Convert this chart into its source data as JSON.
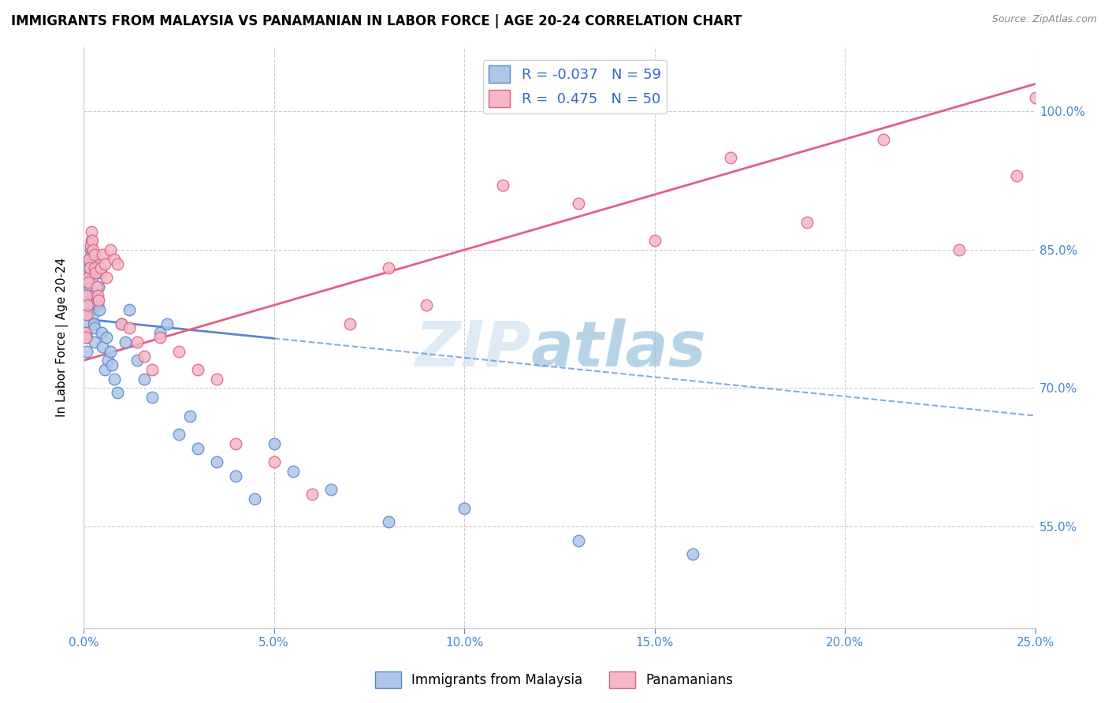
{
  "title": "IMMIGRANTS FROM MALAYSIA VS PANAMANIAN IN LABOR FORCE | AGE 20-24 CORRELATION CHART",
  "source": "Source: ZipAtlas.com",
  "xlabel_ticks": [
    "0.0%",
    "5.0%",
    "10.0%",
    "15.0%",
    "20.0%",
    "25.0%"
  ],
  "xlabel_vals": [
    0.0,
    5.0,
    10.0,
    15.0,
    20.0,
    25.0
  ],
  "ylabel_ticks_right": [
    "100.0%",
    "85.0%",
    "70.0%",
    "55.0%"
  ],
  "ylabel_vals": [
    55.0,
    70.0,
    85.0,
    100.0
  ],
  "ylabel_label": "In Labor Force | Age 20-24",
  "xlim": [
    0.0,
    25.0
  ],
  "ylim": [
    44.0,
    107.0
  ],
  "malaysia_color": "#aec6e8",
  "panama_color": "#f5b8c8",
  "malaysia_edge": "#5588cc",
  "panama_edge": "#e06080",
  "malaysia_R": -0.037,
  "malaysia_N": 59,
  "panama_R": 0.475,
  "panama_N": 50,
  "legend_label1": "Immigrants from Malaysia",
  "legend_label2": "Panamanians",
  "watermark_zip": "ZIP",
  "watermark_atlas": "atlas",
  "malaysia_line_x0": 0.0,
  "malaysia_line_y0": 77.5,
  "malaysia_line_x1": 25.0,
  "malaysia_line_y1": 67.0,
  "malaysia_solid_end": 5.0,
  "panama_line_x0": 0.0,
  "panama_line_y0": 73.0,
  "panama_line_x1": 25.0,
  "panama_line_y1": 103.0,
  "malaysia_x": [
    0.05,
    0.06,
    0.07,
    0.08,
    0.09,
    0.1,
    0.1,
    0.12,
    0.13,
    0.14,
    0.15,
    0.16,
    0.18,
    0.19,
    0.2,
    0.2,
    0.22,
    0.23,
    0.25,
    0.25,
    0.27,
    0.28,
    0.3,
    0.32,
    0.35,
    0.38,
    0.4,
    0.42,
    0.45,
    0.48,
    0.5,
    0.55,
    0.6,
    0.65,
    0.7,
    0.75,
    0.8,
    0.9,
    1.0,
    1.1,
    1.2,
    1.4,
    1.6,
    1.8,
    2.0,
    2.2,
    2.5,
    2.8,
    3.0,
    3.5,
    4.0,
    4.5,
    5.0,
    5.5,
    6.5,
    8.0,
    10.0,
    13.0,
    16.0
  ],
  "malaysia_y": [
    77.0,
    78.5,
    76.0,
    75.5,
    74.0,
    80.5,
    79.0,
    78.0,
    83.0,
    82.0,
    84.0,
    81.0,
    85.0,
    83.5,
    86.0,
    84.5,
    80.0,
    82.0,
    78.0,
    79.5,
    77.0,
    76.5,
    75.0,
    80.0,
    83.5,
    79.0,
    81.0,
    78.5,
    82.5,
    76.0,
    74.5,
    72.0,
    75.5,
    73.0,
    74.0,
    72.5,
    71.0,
    69.5,
    77.0,
    75.0,
    78.5,
    73.0,
    71.0,
    69.0,
    76.0,
    77.0,
    65.0,
    67.0,
    63.5,
    62.0,
    60.5,
    58.0,
    64.0,
    61.0,
    59.0,
    55.5,
    57.0,
    53.5,
    52.0
  ],
  "panama_x": [
    0.05,
    0.07,
    0.08,
    0.09,
    0.1,
    0.12,
    0.13,
    0.15,
    0.16,
    0.18,
    0.2,
    0.22,
    0.25,
    0.28,
    0.3,
    0.32,
    0.35,
    0.38,
    0.4,
    0.45,
    0.5,
    0.55,
    0.6,
    0.7,
    0.8,
    0.9,
    1.0,
    1.2,
    1.4,
    1.6,
    1.8,
    2.0,
    2.5,
    3.0,
    3.5,
    4.0,
    5.0,
    6.0,
    7.0,
    8.0,
    9.0,
    11.0,
    13.0,
    15.0,
    17.0,
    19.0,
    21.0,
    23.0,
    24.5,
    25.0
  ],
  "panama_y": [
    76.0,
    75.5,
    78.0,
    80.0,
    79.0,
    82.0,
    81.5,
    84.0,
    83.0,
    85.5,
    87.0,
    86.0,
    85.0,
    84.5,
    83.0,
    82.5,
    81.0,
    80.0,
    79.5,
    83.0,
    84.5,
    83.5,
    82.0,
    85.0,
    84.0,
    83.5,
    77.0,
    76.5,
    75.0,
    73.5,
    72.0,
    75.5,
    74.0,
    72.0,
    71.0,
    64.0,
    62.0,
    58.5,
    77.0,
    83.0,
    79.0,
    92.0,
    90.0,
    86.0,
    95.0,
    88.0,
    97.0,
    85.0,
    93.0,
    101.5
  ]
}
